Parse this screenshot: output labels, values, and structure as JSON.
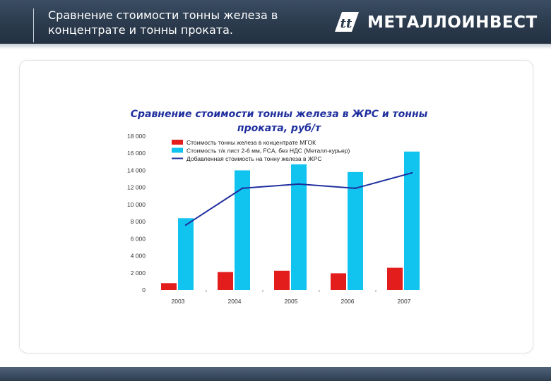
{
  "header": {
    "title_line1": "Сравнение стоимости тонны железа в",
    "title_line2": "концентрате и тонны проката.",
    "brand_name": "МЕТАЛЛОИНВЕСТ",
    "brand_mark_icon": "metalloinvest-logo-icon"
  },
  "colors": {
    "concentrate": "#e31c1c",
    "rolled": "#11c3ef",
    "added_value_line": "#1f2f9e",
    "title": "#1f2f9e",
    "axis_text": "#333333"
  },
  "chart_data": {
    "type": "bar",
    "title_line1": "Сравнение стоимости тонны железа в ЖРС и тонны",
    "title_line2": "проката, руб/т",
    "xlabel": "",
    "ylabel": "",
    "categories": [
      "2003",
      "2004",
      "2005",
      "2006",
      "2007"
    ],
    "ylim": [
      0,
      18000
    ],
    "yticks": [
      0,
      2000,
      4000,
      6000,
      8000,
      10000,
      12000,
      14000,
      16000,
      18000
    ],
    "ytick_labels": [
      "0",
      "2 000",
      "4 000",
      "6 000",
      "8 000",
      "10 000",
      "12 000",
      "14 000",
      "16 000",
      "18 000"
    ],
    "legend_position": "top-left",
    "grid": false,
    "series": [
      {
        "name": "Стоимость тонны железа в концентрате МГОК",
        "kind": "bar",
        "values": [
          800,
          2100,
          2250,
          1950,
          2600
        ]
      },
      {
        "name": "Стоимость т/к лист 2-6 мм, FCA, без НДС (Металл-курьер)",
        "kind": "bar",
        "values": [
          8400,
          14000,
          14700,
          13800,
          16200
        ]
      },
      {
        "name": "Добавленная стоимость на тонну железа в ЖРС",
        "kind": "line",
        "values": [
          7600,
          11900,
          12400,
          11900,
          13700
        ]
      }
    ]
  }
}
